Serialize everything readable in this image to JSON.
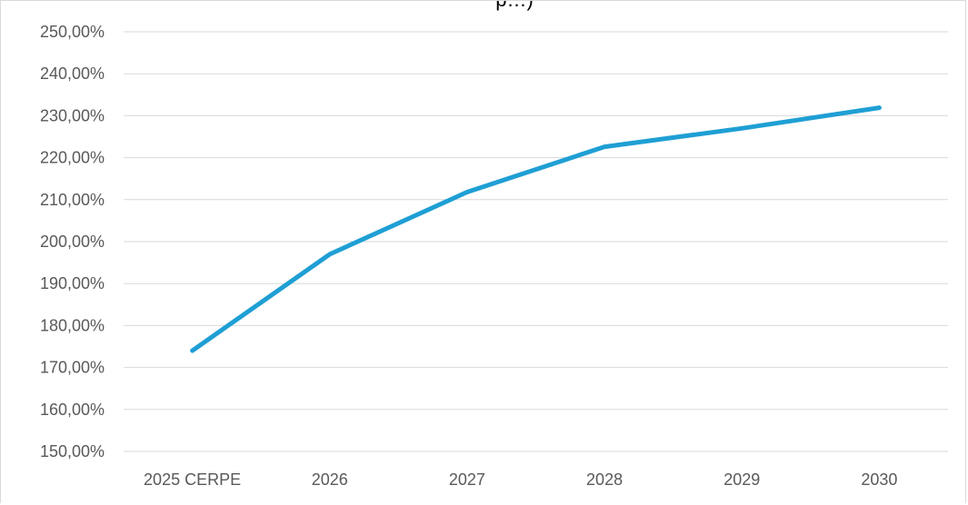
{
  "chart_data": {
    "type": "line",
    "title": "",
    "title_visible_fragment": "p…)",
    "xlabel": "",
    "ylabel": "",
    "categories": [
      "2025 CERPE",
      "2026",
      "2027",
      "2028",
      "2029",
      "2030"
    ],
    "series": [
      {
        "values": [
          174.0,
          197.0,
          211.8,
          222.6,
          227.0,
          231.9
        ],
        "color": "#1f9fd4"
      }
    ],
    "ylim": [
      150,
      250
    ],
    "y_ticks": [
      {
        "value": 150,
        "label": "150,00%"
      },
      {
        "value": 160,
        "label": "160,00%"
      },
      {
        "value": 170,
        "label": "170,00%"
      },
      {
        "value": 180,
        "label": "180,00%"
      },
      {
        "value": 190,
        "label": "190,00%"
      },
      {
        "value": 200,
        "label": "200,00%"
      },
      {
        "value": 210,
        "label": "210,00%"
      },
      {
        "value": 220,
        "label": "220,00%"
      },
      {
        "value": 230,
        "label": "230,00%"
      },
      {
        "value": 240,
        "label": "240,00%"
      },
      {
        "value": 250,
        "label": "250,00%"
      }
    ],
    "grid": true,
    "legend": "none"
  }
}
